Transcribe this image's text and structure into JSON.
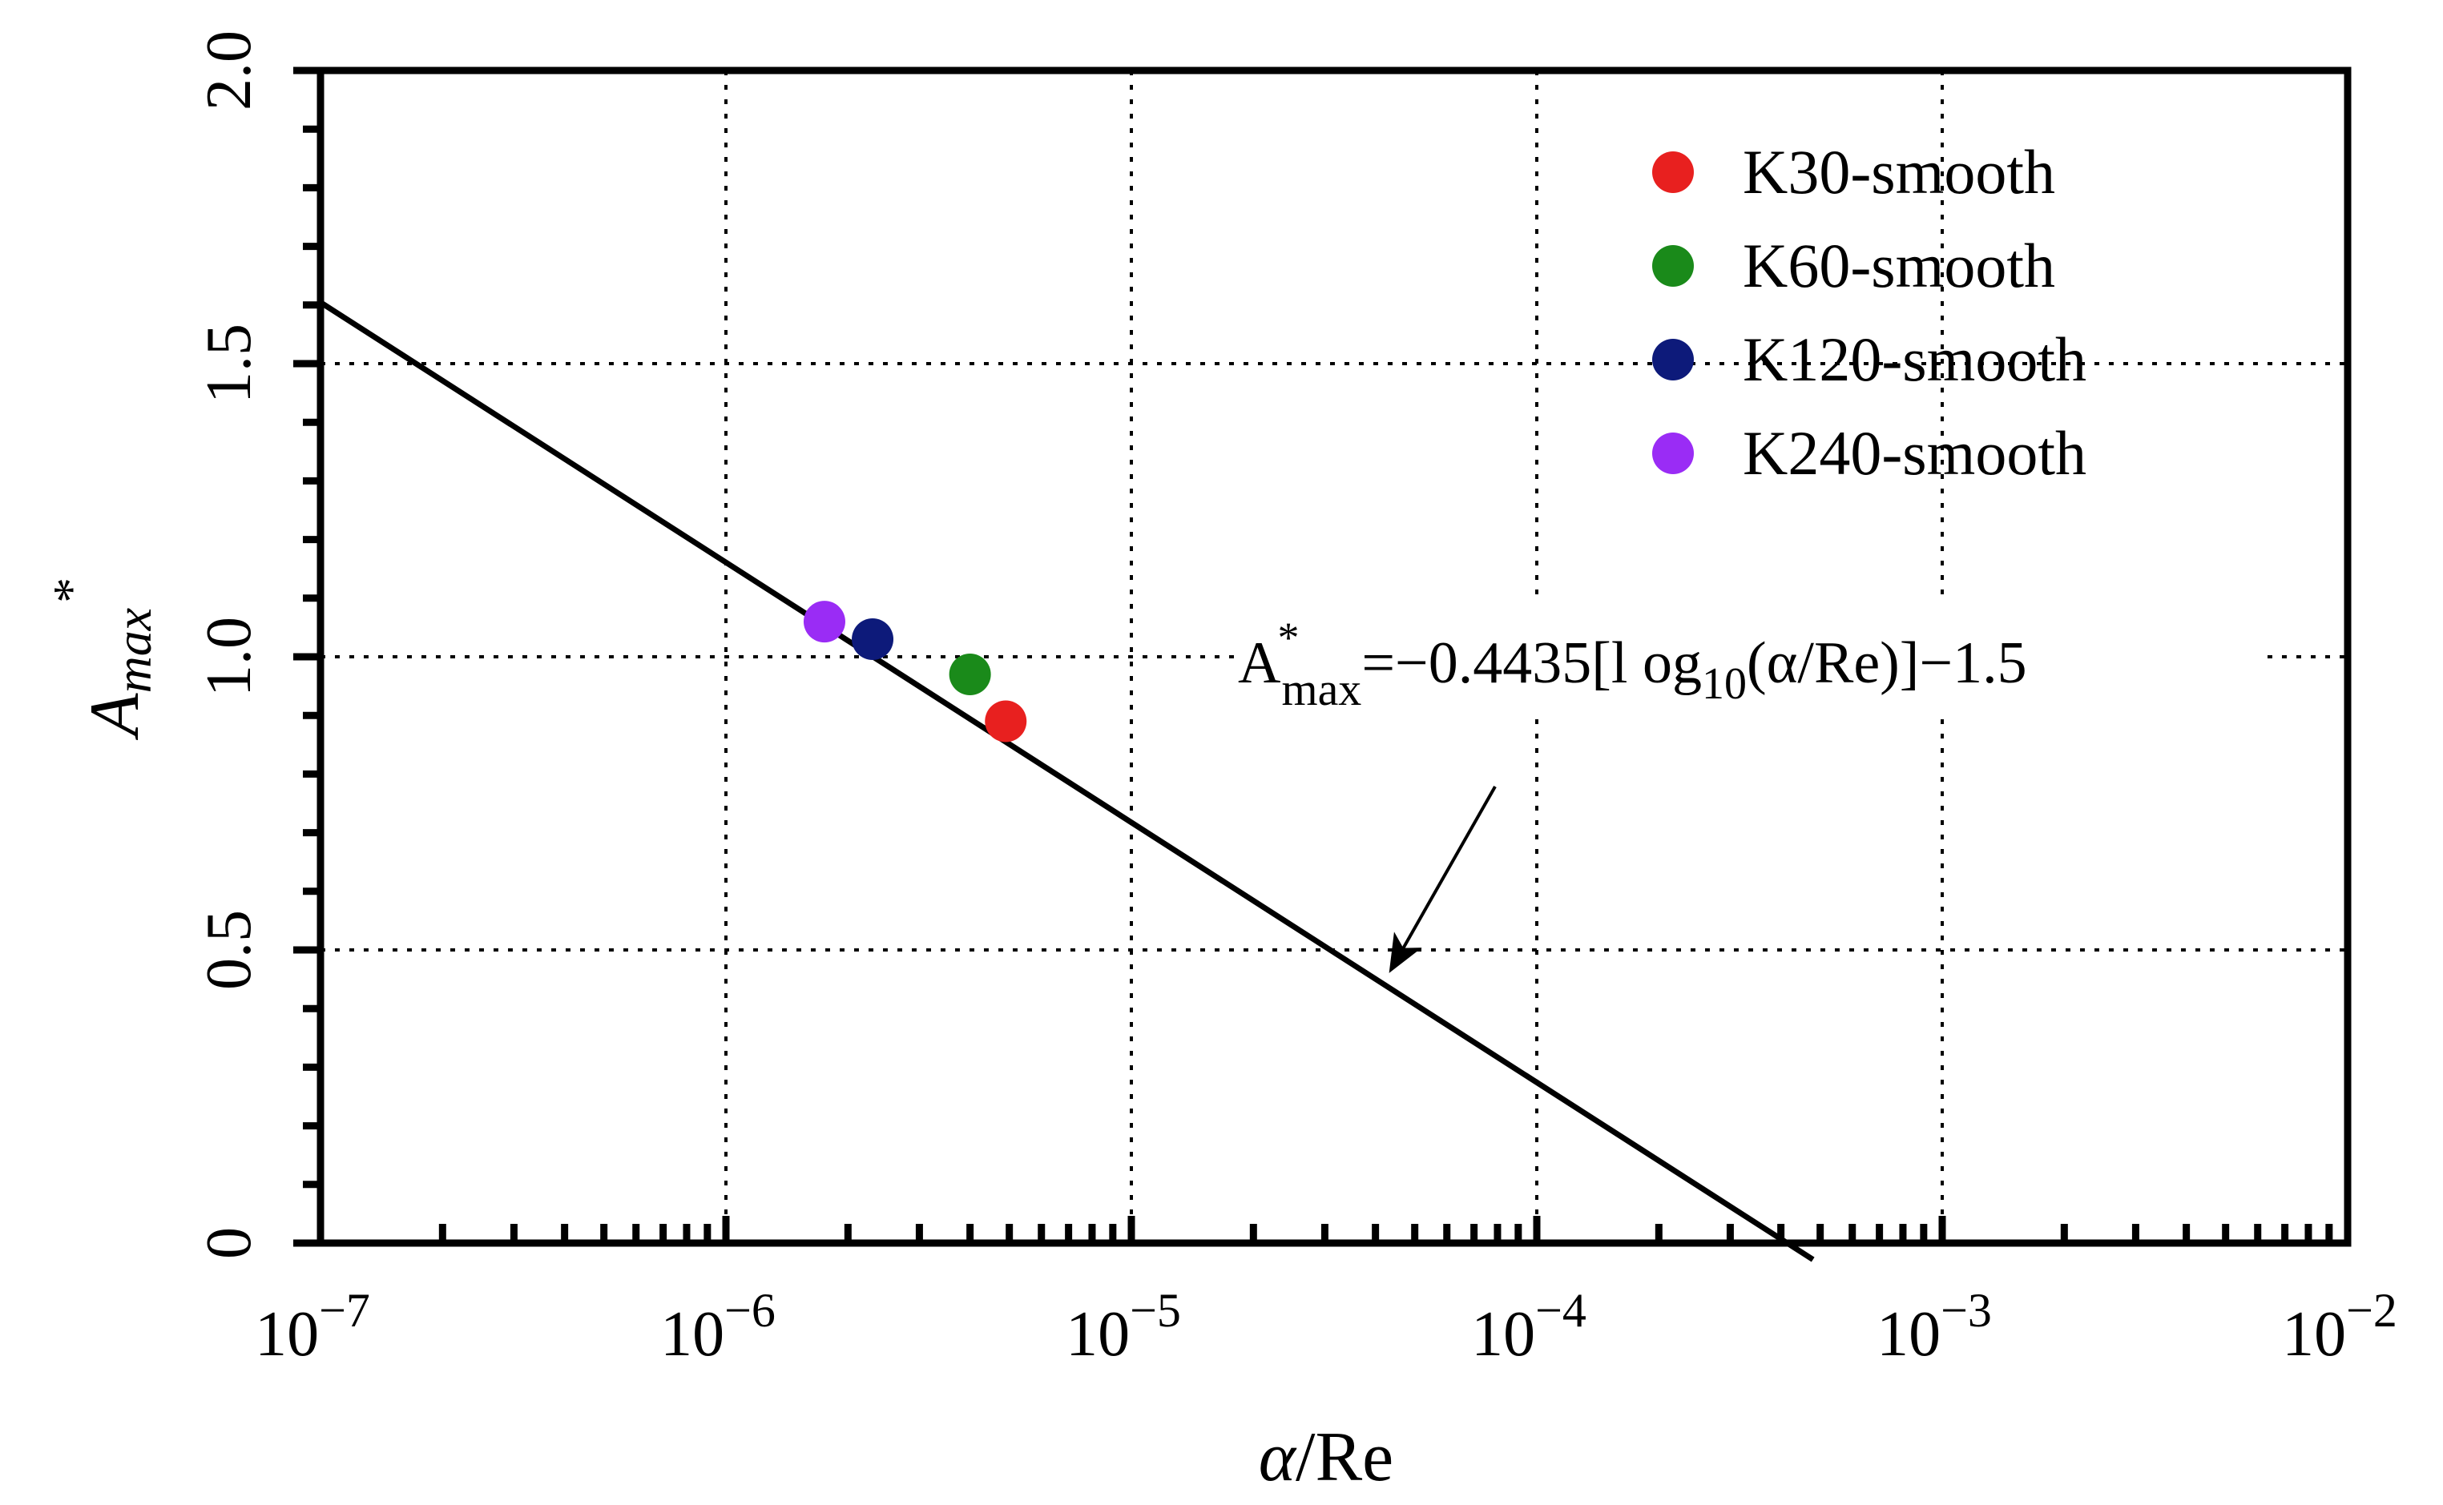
{
  "chart_data": {
    "type": "scatter",
    "title": "",
    "xscale": "log",
    "xlim": [
      1e-07,
      0.01
    ],
    "ylim": [
      0,
      2.0
    ],
    "grid": true,
    "xlabel": {
      "italic": "α",
      "rest": "/Re"
    },
    "ylabel": {
      "base": "A",
      "sub": "max",
      "sup": "*"
    },
    "xticks": [
      {
        "value": 1e-07,
        "base": "10",
        "exp": "−7"
      },
      {
        "value": 1e-06,
        "base": "10",
        "exp": "−6"
      },
      {
        "value": 1e-05,
        "base": "10",
        "exp": "−5"
      },
      {
        "value": 0.0001,
        "base": "10",
        "exp": "−4"
      },
      {
        "value": 0.001,
        "base": "10",
        "exp": "−3"
      },
      {
        "value": 0.01,
        "base": "10",
        "exp": "−2"
      }
    ],
    "yticks": [
      {
        "value": 0,
        "label": "0"
      },
      {
        "value": 0.5,
        "label": "0.5"
      },
      {
        "value": 1.0,
        "label": "1.0"
      },
      {
        "value": 1.5,
        "label": "1.5"
      },
      {
        "value": 2.0,
        "label": "2.0"
      }
    ],
    "legend_position": "top-right",
    "series": [
      {
        "name": "K30-smooth",
        "color": "#e8201f",
        "x": 4.9e-06,
        "y": 0.89
      },
      {
        "name": "K60-smooth",
        "color": "#1a8a1a",
        "x": 4e-06,
        "y": 0.97
      },
      {
        "name": "K120-smooth",
        "color": "#0d1a7a",
        "x": 2.3e-06,
        "y": 1.03
      },
      {
        "name": "K240-smooth",
        "color": "#9a2cf5",
        "x": 1.75e-06,
        "y": 1.06
      }
    ],
    "fit_line": {
      "slope": -0.4435,
      "intercept": -1.5,
      "x_start": 1e-07,
      "x_end": 0.00048,
      "color": "#000000"
    },
    "annotation": {
      "base": "A",
      "sub": "max",
      "sup": "*",
      "text1": "=−0.4435[l og",
      "sub10": "10",
      "text2": "(α/Re)]−1.5",
      "arrow_target_x": 4.4e-05,
      "arrow_target_y": 0.47
    }
  }
}
